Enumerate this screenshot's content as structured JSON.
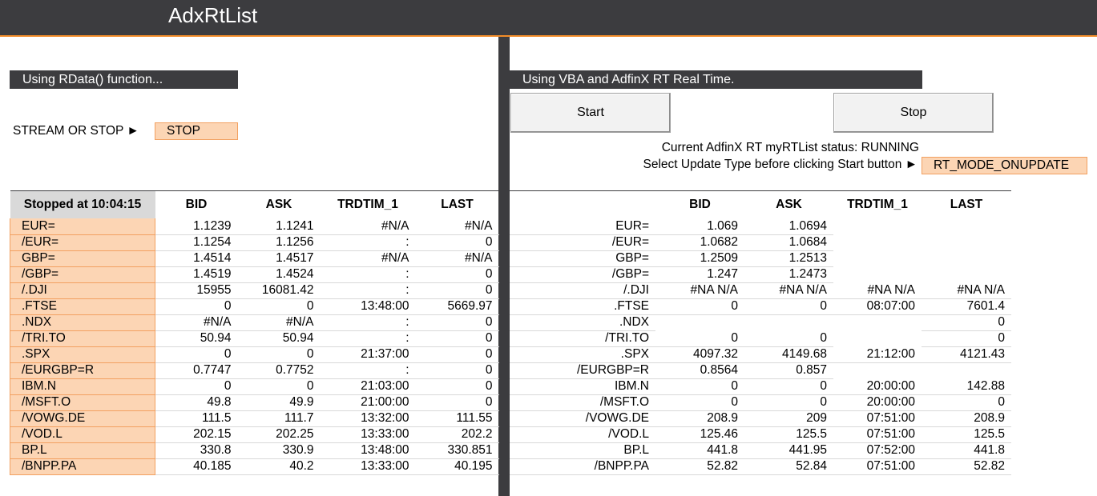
{
  "app": {
    "title": "AdxRtList"
  },
  "left": {
    "section_label": "Using RData() function...",
    "stream_label": "STREAM OR STOP ►",
    "stream_value": "STOP",
    "table": {
      "headers": [
        "Stopped at 10:04:15",
        "BID",
        "ASK",
        "TRDTIM_1",
        "LAST"
      ],
      "rows": [
        [
          "EUR=",
          "1.1239",
          "1.1241",
          "#N/A",
          "#N/A"
        ],
        [
          "/EUR=",
          "1.1254",
          "1.1256",
          ":",
          "0"
        ],
        [
          "GBP=",
          "1.4514",
          "1.4517",
          "#N/A",
          "#N/A"
        ],
        [
          "/GBP=",
          "1.4519",
          "1.4524",
          ":",
          "0"
        ],
        [
          "/.DJI",
          "15955",
          "16081.42",
          ":",
          "0"
        ],
        [
          ".FTSE",
          "0",
          "0",
          "13:48:00",
          "5669.97"
        ],
        [
          ".NDX",
          "#N/A",
          "#N/A",
          ":",
          "0"
        ],
        [
          "/TRI.TO",
          "50.94",
          "50.94",
          ":",
          "0"
        ],
        [
          ".SPX",
          "0",
          "0",
          "21:37:00",
          "0"
        ],
        [
          "/EURGBP=R",
          "0.7747",
          "0.7752",
          ":",
          "0"
        ],
        [
          "IBM.N",
          "0",
          "0",
          "21:03:00",
          "0"
        ],
        [
          "/MSFT.O",
          "49.8",
          "49.9",
          "21:00:00",
          "0"
        ],
        [
          "/VOWG.DE",
          "111.5",
          "111.7",
          "13:32:00",
          "111.55"
        ],
        [
          "/VOD.L",
          "202.15",
          "202.25",
          "13:33:00",
          "202.2"
        ],
        [
          "BP.L",
          "330.8",
          "330.9",
          "13:48:00",
          "330.851"
        ],
        [
          "/BNPP.PA",
          "40.185",
          "40.2",
          "13:33:00",
          "40.195"
        ]
      ]
    }
  },
  "right": {
    "section_label": "Using VBA and AdfinX RT Real Time.",
    "start_label": "Start",
    "stop_label": "Stop",
    "status_text": "Current AdfinX RT myRTList status:  RUNNING",
    "update_type_label": "Select Update Type before clicking Start button ►",
    "update_type_value": "RT_MODE_ONUPDATE",
    "table": {
      "headers": [
        "",
        "BID",
        "ASK",
        "TRDTIM_1",
        "LAST"
      ],
      "rows": [
        [
          "EUR=",
          "1.069",
          "1.0694",
          "",
          ""
        ],
        [
          "/EUR=",
          "1.0682",
          "1.0684",
          "",
          ""
        ],
        [
          "GBP=",
          "1.2509",
          "1.2513",
          "",
          ""
        ],
        [
          "/GBP=",
          "1.247",
          "1.2473",
          "",
          ""
        ],
        [
          "/.DJI",
          "#NA N/A",
          "#NA N/A",
          "#NA N/A",
          "#NA N/A"
        ],
        [
          ".FTSE",
          "0",
          "0",
          "08:07:00",
          "7601.4"
        ],
        [
          ".NDX",
          "",
          "",
          "",
          "0"
        ],
        [
          "/TRI.TO",
          "0",
          "0",
          "",
          "0"
        ],
        [
          ".SPX",
          "4097.32",
          "4149.68",
          "21:12:00",
          "4121.43"
        ],
        [
          "/EURGBP=R",
          "0.8564",
          "0.857",
          "",
          ""
        ],
        [
          "IBM.N",
          "0",
          "0",
          "20:00:00",
          "142.88"
        ],
        [
          "/MSFT.O",
          "0",
          "0",
          "20:00:00",
          "0"
        ],
        [
          "/VOWG.DE",
          "208.9",
          "209",
          "07:51:00",
          "208.9"
        ],
        [
          "/VOD.L",
          "125.46",
          "125.5",
          "07:51:00",
          "125.5"
        ],
        [
          "BP.L",
          "441.8",
          "441.95",
          "07:52:00",
          "441.8"
        ],
        [
          "/BNPP.PA",
          "52.82",
          "52.84",
          "07:51:00",
          "52.82"
        ]
      ]
    }
  }
}
